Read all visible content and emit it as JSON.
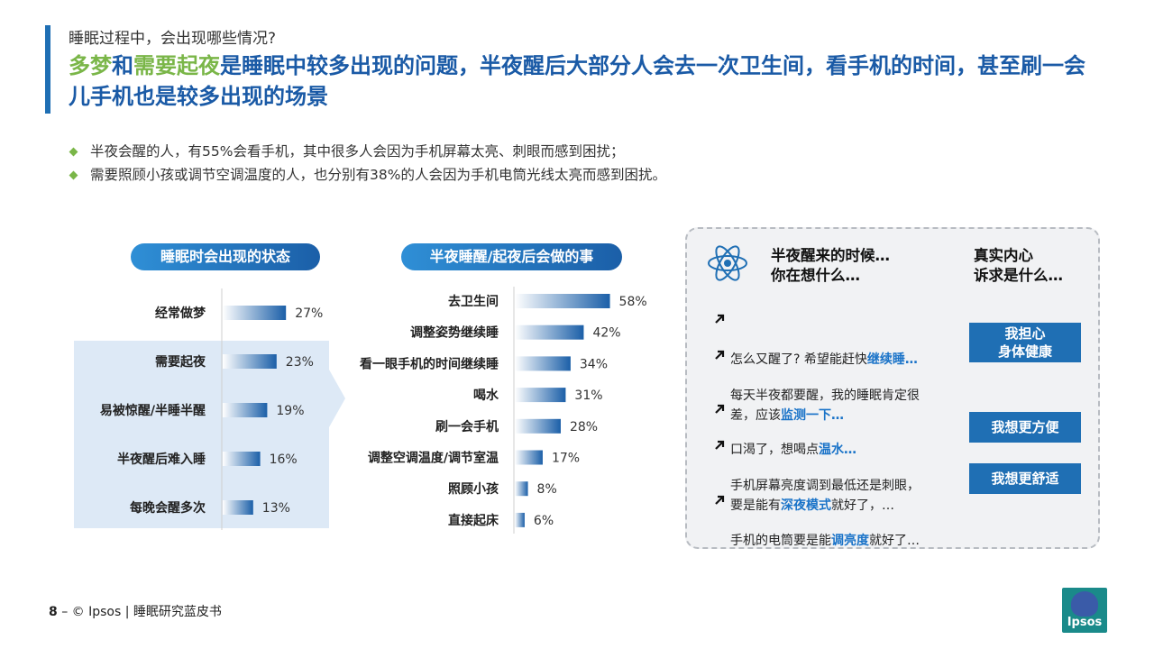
{
  "header": {
    "pretitle": "睡眠过程中，会出现哪些情况?",
    "headline_hl1": "多梦",
    "headline_and": "和",
    "headline_hl2": "需要起夜",
    "headline_rest": "是睡眠中较多出现的问题，半夜醒后大部分人会去一次卫生间，看手机的时间，甚至刷一会儿手机也是较多出现的场景"
  },
  "bullets": [
    "半夜会醒的人，有55%会看手机，其中很多人会因为手机屏幕太亮、刺眼而感到困扰；",
    "需要照顾小孩或调节空调温度的人，也分别有38%的人会因为手机电筒光线太亮而感到困扰。"
  ],
  "chart_data": [
    {
      "type": "bar",
      "orientation": "horizontal",
      "title": "睡眠时会出现的状态",
      "categories": [
        "经常做梦",
        "需要起夜",
        "易被惊醒/半睡半醒",
        "半夜醒后难入睡",
        "每晚会醒多次"
      ],
      "values": [
        27,
        23,
        19,
        16,
        13
      ],
      "value_labels": [
        "27%",
        "23%",
        "19%",
        "16%",
        "13%"
      ],
      "unit": "%"
    },
    {
      "type": "bar",
      "orientation": "horizontal",
      "title": "半夜睡醒/起夜后会做的事",
      "categories": [
        "去卫生间",
        "调整姿势继续睡",
        "看一眼手机的时间继续睡",
        "喝水",
        "刷一会手机",
        "调整空调温度/调节室温",
        "照顾小孩",
        "直接起床"
      ],
      "values": [
        58,
        42,
        34,
        31,
        28,
        17,
        8,
        6
      ],
      "value_labels": [
        "58%",
        "42%",
        "34%",
        "31%",
        "28%",
        "17%",
        "8%",
        "6%"
      ],
      "unit": "%"
    }
  ],
  "right_panel": {
    "head_left": "半夜醒来的时候…\n你在想什么…",
    "head_right": "真实内心\n诉求是什么…",
    "thoughts": [
      {
        "pre": "怎么又醒了? 希望能赶快",
        "em": "继续睡…",
        "post": ""
      },
      {
        "pre": "每天半夜都要醒，我的睡眠肯定很\n差，应该",
        "em": "监测一下…",
        "post": ""
      },
      {
        "pre": "口渴了，想喝点",
        "em": "温水…",
        "post": ""
      },
      {
        "pre": "手机屏幕亮度调到最低还是刺眼，\n要是能有",
        "em": "深夜模式",
        "post": "就好了，…"
      },
      {
        "pre": "手机的电筒要是能",
        "em": "调亮度",
        "post": "就好了…"
      }
    ],
    "needs": [
      "我担心\n身体健康",
      "我想更方便",
      "我想更舒适"
    ]
  },
  "footer": {
    "page_number": "8",
    "dash": " –  ",
    "copyright": "© Ipsos | 睡眠研究蓝皮书"
  },
  "logo": {
    "text": "Ipsos"
  },
  "colors": {
    "brand_blue": "#1f6fb4",
    "accent_green": "#7ab648",
    "highlight_blue": "#1a73c8",
    "shade": "#dde9f6"
  }
}
